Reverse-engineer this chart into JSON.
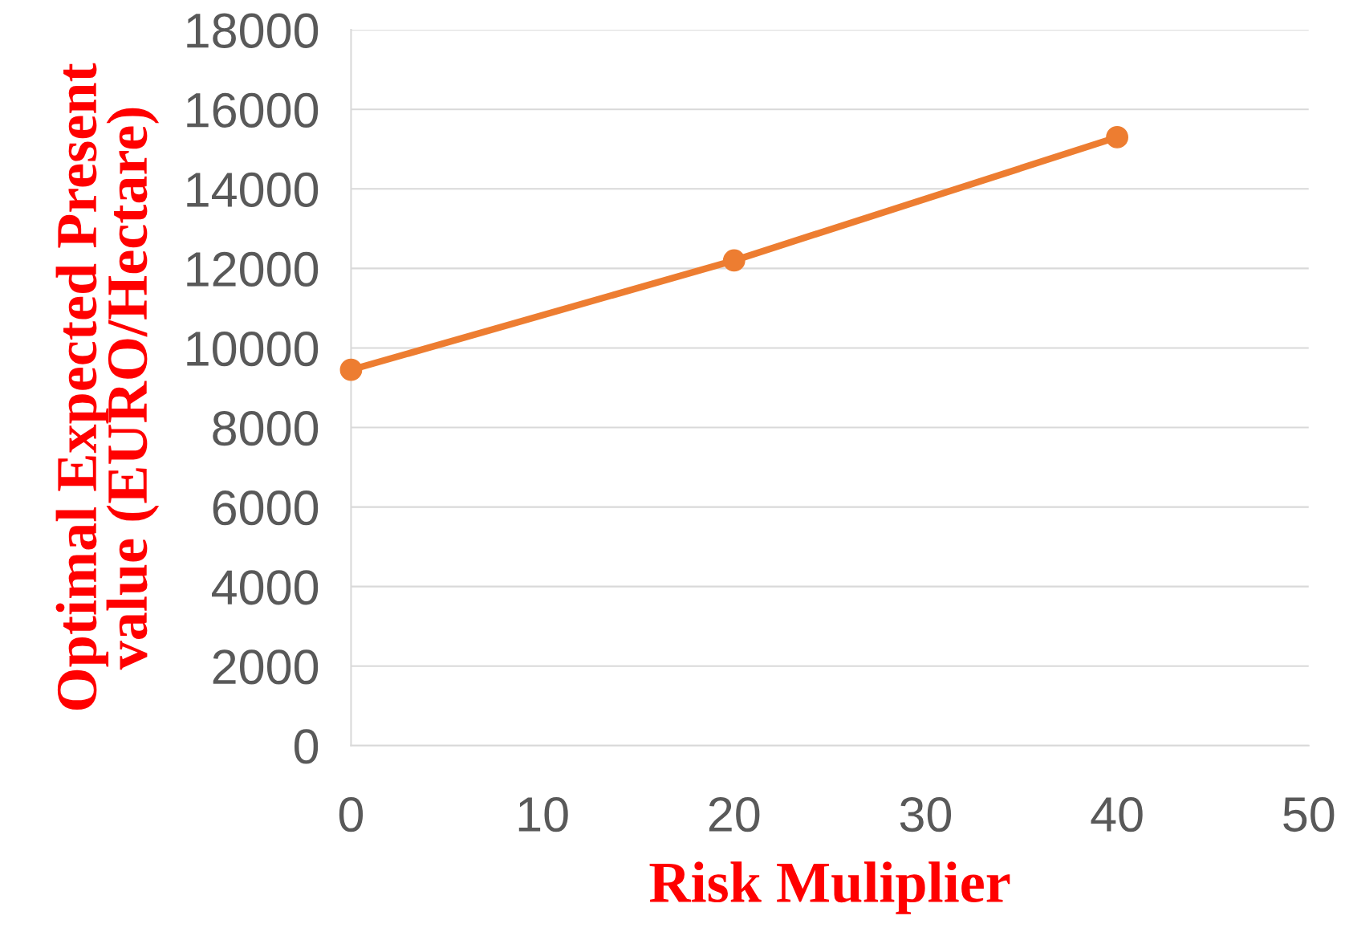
{
  "chart_data": {
    "type": "line",
    "xlabel": "Risk Muliplier",
    "ylabel": "Optimal Expected Present\nvalue (EURO/Hectare)",
    "x": [
      0,
      20,
      40
    ],
    "series": [
      {
        "color": "#ed7d31",
        "values": [
          9450,
          12200,
          15300
        ]
      }
    ],
    "xlim": [
      0,
      50
    ],
    "xticks": [
      0,
      10,
      20,
      30,
      40,
      50
    ],
    "ylim": [
      0,
      18000
    ],
    "yticks": [
      0,
      2000,
      4000,
      6000,
      8000,
      10000,
      12000,
      14000,
      16000,
      18000
    ],
    "grid": "y",
    "marker": "circle",
    "line_style": "solid"
  }
}
